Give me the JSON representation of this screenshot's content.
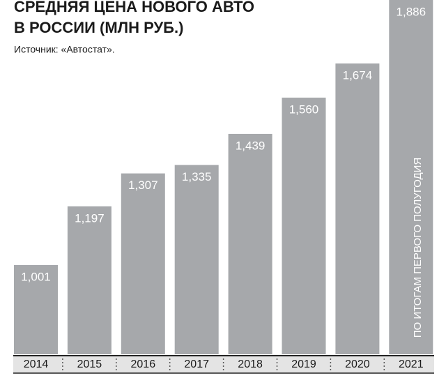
{
  "chart_data": {
    "type": "bar",
    "title_lines": [
      "СРЕДНЯЯ ЦЕНА НОВОГО АВТО",
      "В РОССИИ (МЛН РУБ.)"
    ],
    "source": "Источник: «Автостат».",
    "categories": [
      "2014",
      "2015",
      "2016",
      "2017",
      "2018",
      "2019",
      "2020",
      "2021"
    ],
    "values": [
      1.001,
      1.197,
      1.307,
      1.335,
      1.439,
      1.56,
      1.674,
      1.886
    ],
    "value_labels": [
      "1,001",
      "1,197",
      "1,307",
      "1,335",
      "1,439",
      "1,560",
      "1,674",
      "1,886"
    ],
    "annotation": "ПО ИТОГАМ ПЕРВОГО ПОЛУГОДИЯ",
    "color": "#a6a8ab",
    "ylim": [
      0.703,
      1.886
    ]
  }
}
